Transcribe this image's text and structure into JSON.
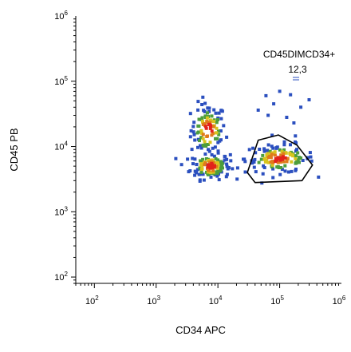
{
  "chart_data": {
    "type": "scatter",
    "xlabel": "CD34 APC",
    "ylabel": "CD45 PB",
    "x_scale": "log",
    "y_scale": "log",
    "xlim": [
      50,
      1000000
    ],
    "ylim": [
      80,
      1000000
    ],
    "x_ticks": [
      {
        "base": "10",
        "exp": "2",
        "value": 100
      },
      {
        "base": "10",
        "exp": "3",
        "value": 1000
      },
      {
        "base": "10",
        "exp": "4",
        "value": 10000
      },
      {
        "base": "10",
        "exp": "5",
        "value": 100000
      },
      {
        "base": "10",
        "exp": "6",
        "value": 1000000
      }
    ],
    "y_ticks": [
      {
        "base": "10",
        "exp": "2",
        "value": 100
      },
      {
        "base": "10",
        "exp": "3",
        "value": 1000
      },
      {
        "base": "10",
        "exp": "4",
        "value": 10000
      },
      {
        "base": "10",
        "exp": "5",
        "value": 100000
      },
      {
        "base": "10",
        "exp": "6",
        "value": 1000000
      }
    ],
    "grid": false,
    "density_colors": [
      "#2b4fbf",
      "#4c9d3c",
      "#d8c41e",
      "#e07a1a",
      "#e2231a"
    ],
    "clusters": [
      {
        "x_center": 7000,
        "y_center": 18000,
        "x_spread": 0.14,
        "y_spread": 0.2,
        "count": 110
      },
      {
        "x_center": 7500,
        "y_center": 5000,
        "x_spread": 0.16,
        "y_spread": 0.1,
        "count": 140
      },
      {
        "x_center": 100000,
        "y_center": 6500,
        "x_spread": 0.28,
        "y_spread": 0.11,
        "count": 130
      }
    ],
    "gates": [
      {
        "name": "CD45DIMCD34+",
        "value": "12,3",
        "polygon": [
          [
            30000,
            4000
          ],
          [
            45000,
            12500
          ],
          [
            95000,
            15000
          ],
          [
            190000,
            10500
          ],
          [
            340000,
            5200
          ],
          [
            230000,
            3000
          ],
          [
            40000,
            2800
          ]
        ]
      }
    ]
  }
}
